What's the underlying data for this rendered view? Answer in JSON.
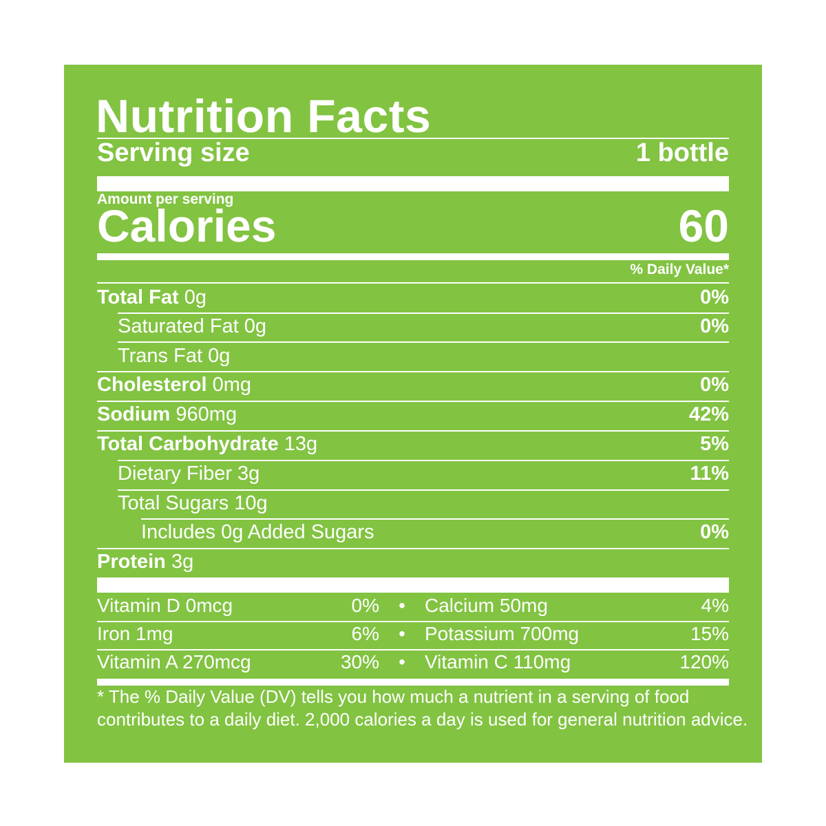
{
  "colors": {
    "panel": "#82c342",
    "text": "#ffffff",
    "background": "#ffffff"
  },
  "label": {
    "title": "Nutrition Facts",
    "serving_size_label": "Serving size",
    "serving_size_value": "1 bottle",
    "amount_per_serving": "Amount per serving",
    "calories_label": "Calories",
    "calories_value": "60",
    "daily_value_header": "% Daily Value*",
    "nutrients": [
      {
        "name": "Total Fat",
        "amount": "0g",
        "dv": "0%"
      },
      {
        "name": "Saturated Fat 0g",
        "dv": "0%"
      },
      {
        "name": "Trans Fat 0g",
        "dv": ""
      },
      {
        "name": "Cholesterol",
        "amount": "0mg",
        "dv": "0%"
      },
      {
        "name": "Sodium",
        "amount": "960mg",
        "dv": "42%"
      },
      {
        "name": "Total Carbohydrate",
        "amount": "13g",
        "dv": "5%"
      },
      {
        "name": "Dietary Fiber 3g",
        "dv": "11%"
      },
      {
        "name": "Total Sugars 10g",
        "dv": ""
      },
      {
        "name": "Includes 0g Added Sugars",
        "dv": "0%"
      },
      {
        "name": "Protein",
        "amount": "3g",
        "dv": ""
      }
    ],
    "vitamins": [
      {
        "left_name": "Vitamin D 0mcg",
        "left_dv": "0%",
        "bullet": "•",
        "right_name": "Calcium 50mg",
        "right_dv": "4%"
      },
      {
        "left_name": "Iron 1mg",
        "left_dv": "6%",
        "bullet": "•",
        "right_name": "Potassium 700mg",
        "right_dv": "15%"
      },
      {
        "left_name": "Vitamin A 270mcg",
        "left_dv": "30%",
        "bullet": "•",
        "right_name": "Vitamin C 110mg",
        "right_dv": "120%"
      }
    ],
    "footnote_line1": "* The % Daily Value (DV) tells you how much a nutrient in a serving of food",
    "footnote_line2": "contributes to a daily diet. 2,000 calories a day is used for general nutrition advice."
  }
}
